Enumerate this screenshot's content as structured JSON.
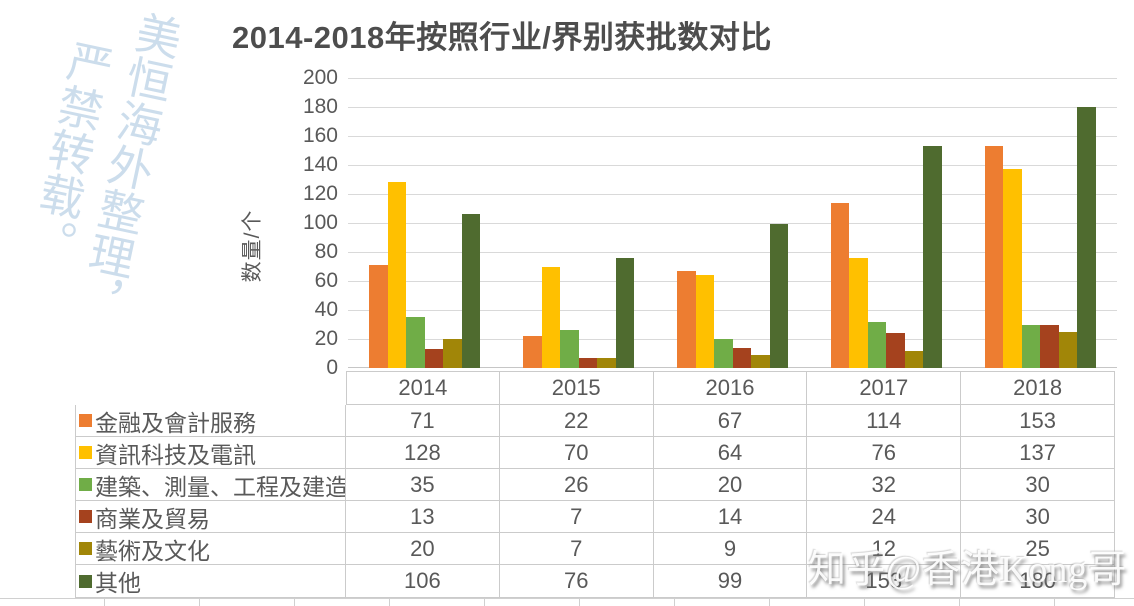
{
  "title": "2014-2018年按照行业/界别获批数对比",
  "watermark_left": {
    "line1": "美恒海外整理，",
    "line2": "严禁转载。"
  },
  "watermark_bottom": "知乎@香港Kong哥",
  "chart_data": {
    "type": "bar",
    "title": "2014-2018年按照行业/界别获批数对比",
    "xlabel": "",
    "ylabel": "数量/个",
    "ylim": [
      0,
      200
    ],
    "ytick_step": 20,
    "grid": true,
    "legend_position": "data-table-below",
    "categories": [
      "2014",
      "2015",
      "2016",
      "2017",
      "2018"
    ],
    "series": [
      {
        "name": "金融及會計服務",
        "color": "#ED7D31",
        "values": [
          71,
          22,
          67,
          114,
          153
        ]
      },
      {
        "name": "資訊科技及電訊",
        "color": "#FFC000",
        "values": [
          128,
          70,
          64,
          76,
          137
        ]
      },
      {
        "name": "建築、測量、工程及建造",
        "color": "#70AD47",
        "values": [
          35,
          26,
          20,
          32,
          30
        ]
      },
      {
        "name": "商業及貿易",
        "color": "#A5421E",
        "values": [
          13,
          7,
          14,
          24,
          30
        ]
      },
      {
        "name": "藝術及文化",
        "color": "#A18608",
        "values": [
          20,
          7,
          9,
          12,
          25
        ]
      },
      {
        "name": "其他",
        "color": "#4F6B2F",
        "values": [
          106,
          76,
          99,
          153,
          180
        ]
      }
    ]
  },
  "colors": {
    "title_text": "#4D4D4D",
    "axis_text": "#595959",
    "gridline": "#D9D9D9",
    "table_border": "#CBCBCB",
    "watermark_blue": "#B7CFE4"
  }
}
